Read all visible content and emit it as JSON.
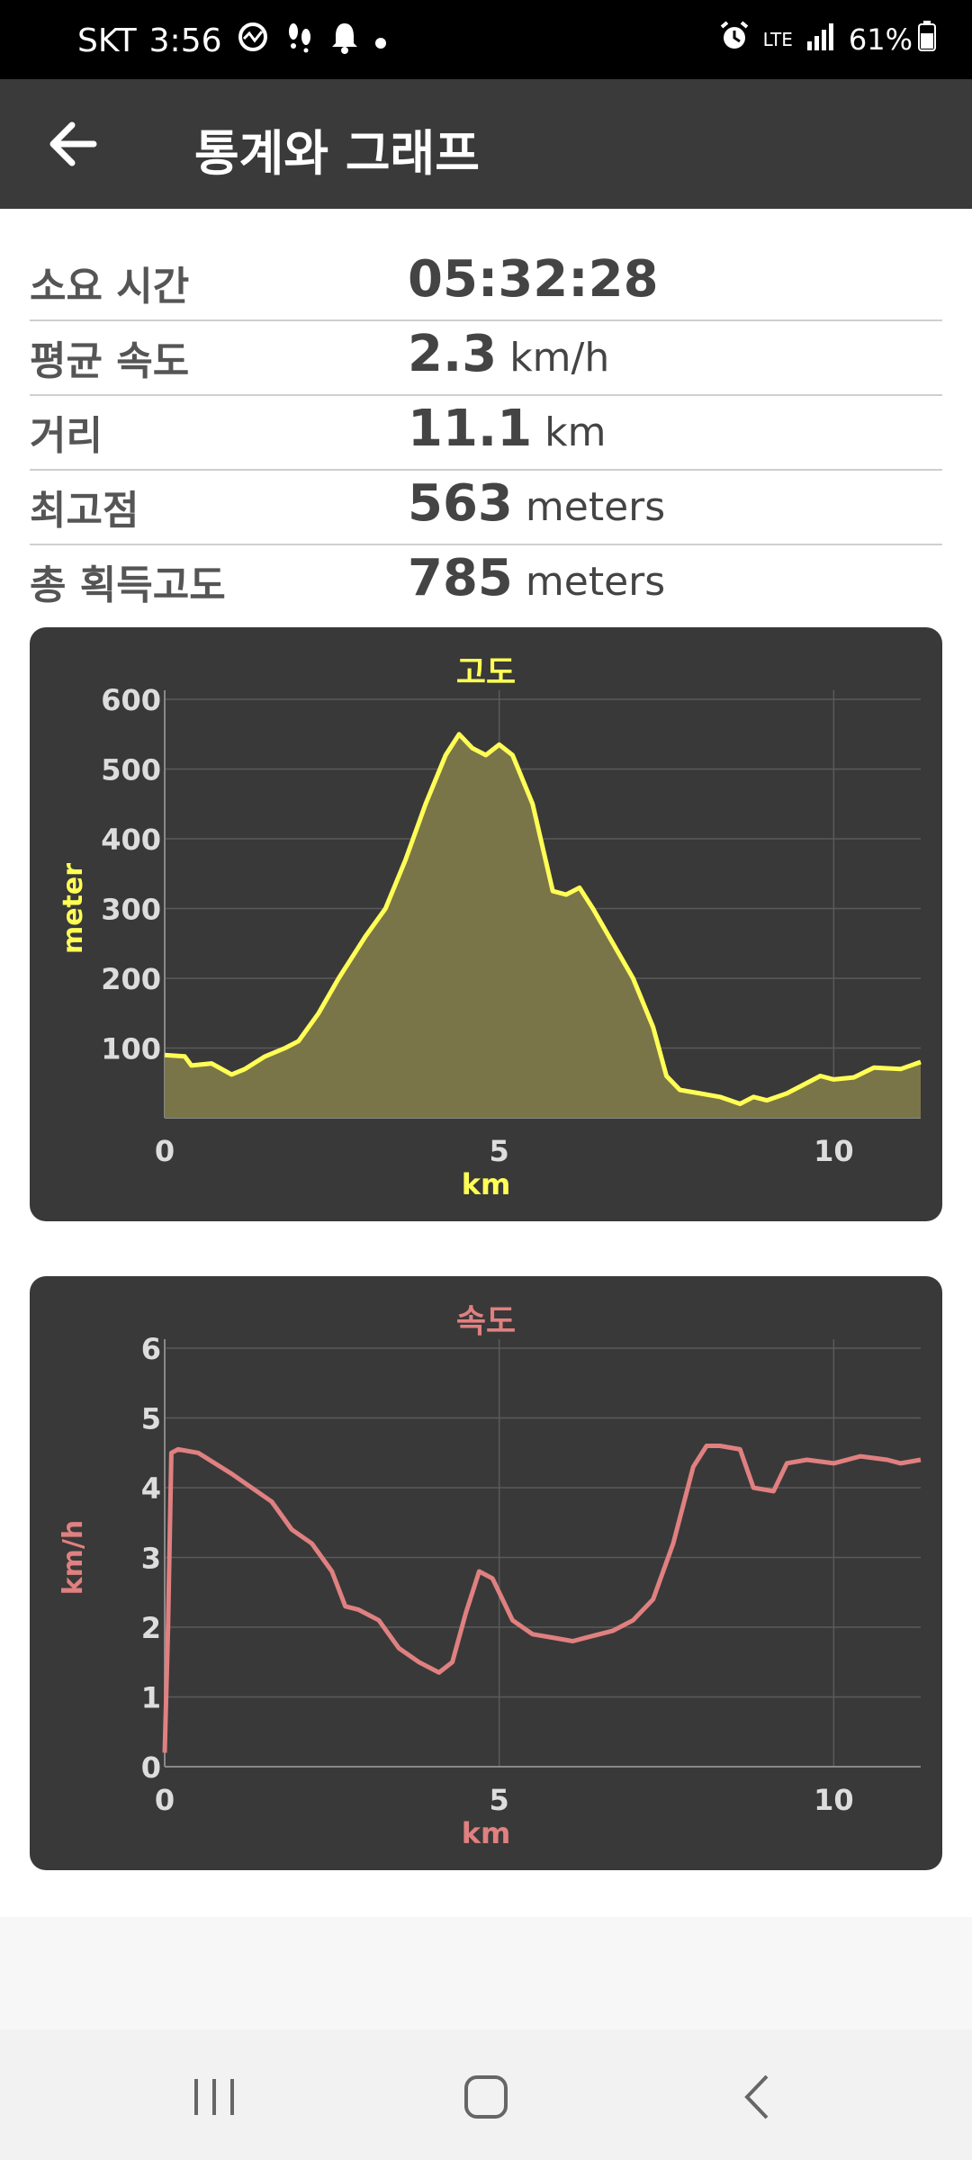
{
  "status_bar": {
    "carrier": "SKT",
    "time": "3:56",
    "network": "LTE",
    "battery": "61%",
    "icons_left": [
      "activity-icon",
      "footsteps-icon",
      "notification-bell-icon",
      "dot-icon"
    ],
    "icons_right": [
      "alarm-icon",
      "lte-icon",
      "signal-icon",
      "battery-icon"
    ]
  },
  "app_bar": {
    "title": "통계와 그래프",
    "back_icon": "arrow-left-icon"
  },
  "stats": [
    {
      "label": "소요 시간",
      "value": "05:32:28",
      "unit": ""
    },
    {
      "label": "평균 속도",
      "value": "2.3",
      "unit": "km/h"
    },
    {
      "label": "거리",
      "value": "11.1",
      "unit": "km"
    },
    {
      "label": "최고점",
      "value": "563",
      "unit": "meters"
    },
    {
      "label": "총 획득고도",
      "value": "785",
      "unit": "meters"
    }
  ],
  "chart_data": [
    {
      "type": "area",
      "title": "고도",
      "xlabel": "km",
      "ylabel": "meter",
      "color": "#ffff55",
      "fill": "#7a7548",
      "xlim": [
        0,
        11.3
      ],
      "ylim": [
        0,
        600
      ],
      "xticks": [
        0,
        5,
        10
      ],
      "yticks": [
        100,
        200,
        300,
        400,
        500,
        600
      ],
      "grid": true,
      "x": [
        0,
        0.3,
        0.4,
        0.7,
        1.0,
        1.2,
        1.5,
        1.8,
        2.0,
        2.3,
        2.6,
        3.0,
        3.3,
        3.6,
        3.9,
        4.2,
        4.4,
        4.6,
        4.8,
        5.0,
        5.2,
        5.5,
        5.8,
        6.0,
        6.2,
        6.4,
        6.7,
        7.0,
        7.3,
        7.5,
        7.7,
        8.0,
        8.3,
        8.6,
        8.8,
        9.0,
        9.3,
        9.5,
        9.8,
        10.0,
        10.3,
        10.6,
        11.0,
        11.3
      ],
      "y": [
        90,
        88,
        75,
        78,
        62,
        70,
        88,
        100,
        110,
        150,
        200,
        260,
        300,
        370,
        450,
        520,
        550,
        530,
        520,
        535,
        520,
        450,
        325,
        320,
        330,
        300,
        250,
        200,
        130,
        60,
        40,
        35,
        30,
        20,
        30,
        25,
        35,
        45,
        60,
        55,
        58,
        72,
        70,
        80
      ]
    },
    {
      "type": "line",
      "title": "속도",
      "xlabel": "km",
      "ylabel": "km/h",
      "color": "#e08080",
      "xlim": [
        0,
        11.3
      ],
      "ylim": [
        0,
        6
      ],
      "xticks": [
        0,
        5,
        10
      ],
      "yticks": [
        0,
        1,
        2,
        3,
        4,
        5,
        6
      ],
      "grid": true,
      "x": [
        0,
        0.05,
        0.1,
        0.2,
        0.5,
        1.0,
        1.3,
        1.6,
        1.9,
        2.2,
        2.5,
        2.7,
        2.9,
        3.2,
        3.5,
        3.8,
        4.1,
        4.3,
        4.5,
        4.7,
        4.9,
        5.2,
        5.5,
        5.8,
        6.1,
        6.3,
        6.7,
        7.0,
        7.3,
        7.6,
        7.9,
        8.1,
        8.3,
        8.6,
        8.8,
        9.1,
        9.3,
        9.6,
        10.0,
        10.4,
        10.8,
        11.0,
        11.3
      ],
      "y": [
        0.2,
        2.0,
        4.5,
        4.55,
        4.5,
        4.2,
        4.0,
        3.8,
        3.4,
        3.2,
        2.8,
        2.3,
        2.25,
        2.1,
        1.7,
        1.5,
        1.35,
        1.5,
        2.2,
        2.8,
        2.7,
        2.1,
        1.9,
        1.85,
        1.8,
        1.85,
        1.95,
        2.1,
        2.4,
        3.2,
        4.3,
        4.6,
        4.6,
        4.55,
        4.0,
        3.95,
        4.35,
        4.4,
        4.35,
        4.45,
        4.4,
        4.35,
        4.4
      ]
    }
  ],
  "nav_bar": {
    "recent_icon": "recent-apps-icon",
    "home_icon": "home-icon",
    "back_icon": "back-icon"
  }
}
